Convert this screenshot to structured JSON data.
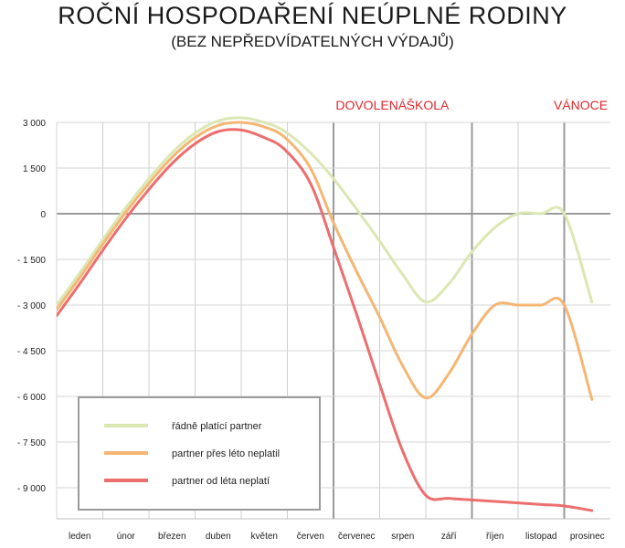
{
  "title": "ROČNÍ HOSPODAŘENÍ NEÚPLNÉ RODINY",
  "subtitle": "(BEZ NEPŘEDVÍDATELNÝCH VÝDAJŮ)",
  "chart_data": {
    "type": "line",
    "categories": [
      "leden",
      "únor",
      "březen",
      "duben",
      "květen",
      "červen",
      "červenec",
      "srpen",
      "září",
      "říjen",
      "listopad",
      "prosinec"
    ],
    "ylim": [
      -9900,
      3000
    ],
    "yticks": [
      3000,
      1500,
      0,
      -1500,
      -3000,
      -4500,
      -6000,
      -7500,
      -9000
    ],
    "ytick_labels": [
      "3 000",
      "1 500",
      "0",
      "- 1 500",
      "- 3 000",
      "- 4 500",
      "- 6 000",
      "- 7 500",
      "- 9 000"
    ],
    "grid": true,
    "legend_position": "bottom-left",
    "annotations": [
      {
        "label": "DOVOLENÁ",
        "between": [
          "červen",
          "srpen"
        ],
        "color": "#e2262c"
      },
      {
        "label": "ŠKOLA",
        "at": "září",
        "color": "#e2262c"
      },
      {
        "label": "VÁNOCE",
        "at": "prosinec",
        "color": "#e2262c"
      }
    ],
    "x": [
      0,
      0.5,
      1.0,
      1.5,
      2.0,
      2.5,
      3.0,
      3.5,
      4.0,
      4.5,
      4.95,
      5.5,
      6.0,
      6.5,
      7.0,
      7.5,
      8.0,
      8.5,
      9.0,
      9.5,
      10.0,
      10.5,
      11.0,
      11.6
    ],
    "series": [
      {
        "name": "řádně platící partner",
        "color": "#dbe7b3",
        "values": [
          -3000,
          -1950,
          -850,
          200,
          1150,
          2000,
          2650,
          3050,
          3150,
          3000,
          2700,
          2000,
          1150,
          150,
          -900,
          -2000,
          -2900,
          -2300,
          -1250,
          -450,
          0,
          0,
          0,
          -2900
        ]
      },
      {
        "name": "partner přes léto neplatil",
        "color": "#f5b673",
        "values": [
          -3150,
          -2100,
          -1000,
          50,
          1000,
          1850,
          2500,
          2900,
          3000,
          2850,
          2500,
          1500,
          -300,
          -1900,
          -3400,
          -5000,
          -6050,
          -5250,
          -3950,
          -3000,
          -3000,
          -3000,
          -3000,
          -6100
        ]
      },
      {
        "name": "partner od léta neplatí",
        "color": "#ec6e6e",
        "values": [
          -3350,
          -2300,
          -1200,
          -150,
          800,
          1650,
          2300,
          2700,
          2750,
          2500,
          2100,
          1000,
          -1100,
          -3300,
          -5600,
          -7800,
          -9250,
          -9350,
          -9400,
          -9450,
          -9500,
          -9550,
          -9600,
          -9750
        ]
      }
    ]
  }
}
